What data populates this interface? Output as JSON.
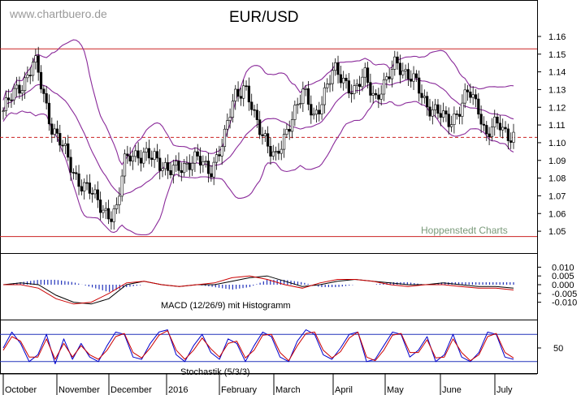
{
  "watermark": "www.chartbuero.de",
  "credit": "Hoppenstedt Charts",
  "chart_data": [
    {
      "type": "candlestick",
      "title": "EUR/USD",
      "ylim": [
        1.045,
        1.165
      ],
      "yticks": [
        "1.16",
        "1.15",
        "1.14",
        "1.13",
        "1.12",
        "1.11",
        "1.10",
        "1.09",
        "1.08",
        "1.07",
        "1.06",
        "1.05"
      ],
      "months": [
        "October",
        "November",
        "December",
        "2016",
        "February",
        "March",
        "April",
        "May",
        "June",
        "July"
      ],
      "overlays": [
        "Bollinger Bands"
      ],
      "lines": {
        "upper_horizontal": 1.153,
        "lower_horizontal": 1.047,
        "dashed_level": 1.103
      },
      "approx_close_path": [
        {
          "x": 0,
          "y": 1.118
        },
        {
          "x": 8,
          "y": 1.13
        },
        {
          "x": 14,
          "y": 1.138
        },
        {
          "x": 18,
          "y": 1.146
        },
        {
          "x": 22,
          "y": 1.132
        },
        {
          "x": 28,
          "y": 1.11
        },
        {
          "x": 34,
          "y": 1.098
        },
        {
          "x": 40,
          "y": 1.085
        },
        {
          "x": 46,
          "y": 1.076
        },
        {
          "x": 52,
          "y": 1.07
        },
        {
          "x": 58,
          "y": 1.064
        },
        {
          "x": 62,
          "y": 1.058
        },
        {
          "x": 66,
          "y": 1.06
        },
        {
          "x": 70,
          "y": 1.09
        },
        {
          "x": 74,
          "y": 1.096
        },
        {
          "x": 80,
          "y": 1.09
        },
        {
          "x": 88,
          "y": 1.094
        },
        {
          "x": 96,
          "y": 1.082
        },
        {
          "x": 104,
          "y": 1.088
        },
        {
          "x": 112,
          "y": 1.09
        },
        {
          "x": 120,
          "y": 1.085
        },
        {
          "x": 128,
          "y": 1.1
        },
        {
          "x": 134,
          "y": 1.128
        },
        {
          "x": 140,
          "y": 1.132
        },
        {
          "x": 146,
          "y": 1.112
        },
        {
          "x": 152,
          "y": 1.104
        },
        {
          "x": 158,
          "y": 1.09
        },
        {
          "x": 162,
          "y": 1.098
        },
        {
          "x": 168,
          "y": 1.118
        },
        {
          "x": 174,
          "y": 1.128
        },
        {
          "x": 180,
          "y": 1.114
        },
        {
          "x": 186,
          "y": 1.128
        },
        {
          "x": 192,
          "y": 1.14
        },
        {
          "x": 198,
          "y": 1.136
        },
        {
          "x": 204,
          "y": 1.128
        },
        {
          "x": 210,
          "y": 1.138
        },
        {
          "x": 216,
          "y": 1.126
        },
        {
          "x": 222,
          "y": 1.132
        },
        {
          "x": 228,
          "y": 1.148
        },
        {
          "x": 234,
          "y": 1.138
        },
        {
          "x": 240,
          "y": 1.132
        },
        {
          "x": 246,
          "y": 1.122
        },
        {
          "x": 252,
          "y": 1.116
        },
        {
          "x": 258,
          "y": 1.112
        },
        {
          "x": 264,
          "y": 1.118
        },
        {
          "x": 270,
          "y": 1.128
        },
        {
          "x": 276,
          "y": 1.12
        },
        {
          "x": 280,
          "y": 1.104
        },
        {
          "x": 284,
          "y": 1.108
        },
        {
          "x": 288,
          "y": 1.11
        },
        {
          "x": 292,
          "y": 1.106
        },
        {
          "x": 296,
          "y": 1.104
        }
      ]
    },
    {
      "type": "line",
      "title": "MACD (12/26/9) mit Histogramm",
      "ylim": [
        -0.0125,
        0.0125
      ],
      "yticks": [
        "0.010",
        "0.005",
        "0.000",
        "-0.005",
        "-0.010"
      ],
      "series": [
        {
          "color": "#000000",
          "values": [
            0.0,
            0.001,
            0.0,
            -0.006,
            -0.01,
            -0.011,
            -0.008,
            0.0,
            0.002,
            0.0,
            -0.001,
            0.0,
            0.0,
            0.002,
            0.004,
            0.005,
            0.002,
            -0.001,
            0.0,
            0.002,
            0.003,
            0.002,
            0.001,
            0.0,
            0.0,
            0.001,
            0.0,
            -0.001,
            -0.001,
            -0.002
          ]
        },
        {
          "color": "#cc0000",
          "values": [
            0.0,
            0.0,
            -0.002,
            -0.008,
            -0.011,
            -0.01,
            -0.005,
            0.001,
            0.002,
            0.0,
            -0.001,
            0.0,
            0.001,
            0.004,
            0.005,
            0.003,
            0.0,
            -0.002,
            0.001,
            0.003,
            0.003,
            0.002,
            0.0,
            -0.001,
            0.0,
            0.0,
            -0.001,
            -0.002,
            -0.002,
            -0.003
          ]
        }
      ]
    },
    {
      "type": "line",
      "title": "Stochastik (5/3/3)",
      "ylim": [
        0,
        100
      ],
      "yticks": [
        "50"
      ],
      "levels": [
        80,
        20
      ],
      "series": [
        {
          "color": "#0000cc",
          "values": [
            50,
            85,
            60,
            20,
            35,
            80,
            15,
            70,
            25,
            60,
            30,
            20,
            55,
            85,
            80,
            30,
            25,
            60,
            85,
            90,
            35,
            20,
            55,
            80,
            40,
            25,
            70,
            60,
            20,
            55,
            85,
            75,
            30,
            20,
            65,
            90,
            80,
            35,
            25,
            50,
            80,
            85,
            20,
            25,
            55,
            85,
            80,
            30,
            45,
            75,
            20,
            35,
            80,
            30,
            20,
            40,
            85,
            80,
            30,
            25
          ]
        },
        {
          "color": "#cc0000",
          "values": [
            45,
            75,
            65,
            30,
            30,
            70,
            25,
            60,
            30,
            55,
            35,
            25,
            45,
            75,
            82,
            40,
            28,
            50,
            78,
            88,
            45,
            25,
            45,
            72,
            48,
            30,
            60,
            65,
            28,
            45,
            78,
            80,
            40,
            22,
            55,
            82,
            85,
            45,
            28,
            42,
            72,
            85,
            30,
            22,
            45,
            78,
            82,
            40,
            40,
            68,
            28,
            30,
            70,
            40,
            22,
            35,
            75,
            82,
            40,
            28
          ]
        }
      ]
    }
  ]
}
